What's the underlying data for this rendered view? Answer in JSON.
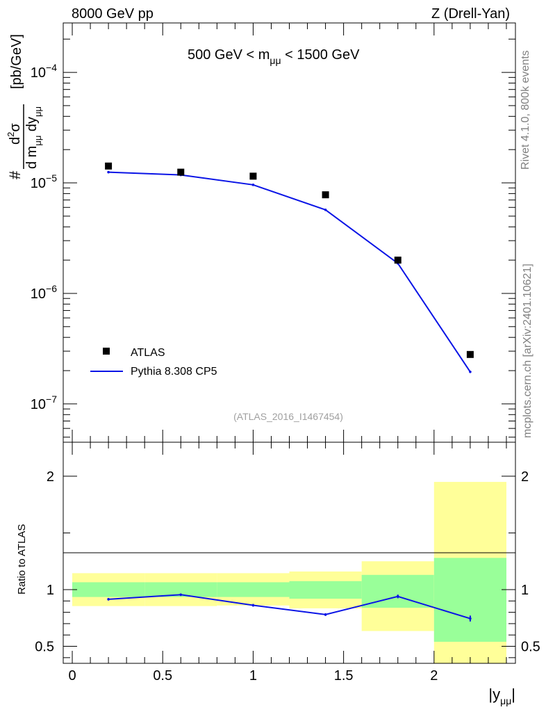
{
  "header": {
    "left": "8000 GeV pp",
    "right": "Z (Drell-Yan)"
  },
  "side": {
    "rivet": "Rivet 4.1.0,  800k events",
    "mcplots": "mcplots.cern.ch [arXiv:2401.10621]"
  },
  "colors": {
    "data": "#000000",
    "mc": "#0a14e6",
    "band_inner": "#99ff99",
    "band_outer": "#ffff99",
    "watermark": "#a0a0a0"
  },
  "chart_data": [
    {
      "type": "scatter",
      "title": "500 GeV < mμμ < 1500 GeV",
      "title_parts": {
        "prefix": "500 GeV < m",
        "sub": "μμ",
        "suffix": " < 1500 GeV"
      },
      "watermark": "(ATLAS_2016_I1467454)",
      "ylabel": "# d²σ / d mμμ dyμμ [pb/GeV]",
      "yscale": "log",
      "ylim": [
        4.5e-08,
        0.00028
      ],
      "xlim": [
        -0.05,
        2.45
      ],
      "ytick_labels": [
        {
          "value": 0.0001,
          "base": "10",
          "exp": "−4"
        },
        {
          "value": 1e-05,
          "base": "10",
          "exp": "−5"
        },
        {
          "value": 1e-06,
          "base": "10",
          "exp": "−6"
        },
        {
          "value": 1e-07,
          "base": "10",
          "exp": "−7"
        }
      ],
      "legend": {
        "position": "bottom-left",
        "entries": [
          "ATLAS",
          "Pythia 8.308 CP5"
        ]
      },
      "series": [
        {
          "name": "ATLAS",
          "kind": "markers",
          "x": [
            0.2,
            0.6,
            1.0,
            1.4,
            1.8,
            2.2
          ],
          "y": [
            1.42e-05,
            1.25e-05,
            1.15e-05,
            7.8e-06,
            2e-06,
            2.8e-07
          ]
        },
        {
          "name": "Pythia 8.308 CP5",
          "kind": "line",
          "x": [
            0.2,
            0.6,
            1.0,
            1.4,
            1.8,
            2.2
          ],
          "y": [
            1.25e-05,
            1.18e-05,
            9.6e-06,
            5.7e-06,
            1.87e-06,
            1.95e-07
          ]
        }
      ]
    },
    {
      "type": "line",
      "ylabel": "Ratio to ATLAS",
      "xlabel": "|yμμ|",
      "xlabel_parts": {
        "prefix": "|y",
        "sub": "μμ",
        "suffix": "|"
      },
      "ylim": [
        0.35,
        2.3
      ],
      "xlim": [
        -0.05,
        2.45
      ],
      "yticks": [
        0.5,
        1,
        2
      ],
      "ytick_labels": [
        "0.5",
        "1",
        "2"
      ],
      "xticks": [
        0,
        0.5,
        1,
        1.5,
        2
      ],
      "xtick_labels": [
        "0",
        "0.5",
        "1",
        "1.5",
        "2"
      ],
      "bins": [
        0,
        0.4,
        0.8,
        1.2,
        1.6,
        2.0,
        2.4
      ],
      "band_inner": {
        "lo": [
          0.935,
          0.935,
          0.935,
          0.92,
          0.84,
          0.54
        ],
        "hi": [
          1.065,
          1.065,
          1.065,
          1.075,
          1.13,
          1.28
        ]
      },
      "band_outer": {
        "lo": [
          0.855,
          0.855,
          0.86,
          0.835,
          0.635,
          0.35
        ],
        "hi": [
          1.145,
          1.145,
          1.145,
          1.16,
          1.25,
          1.95
        ]
      },
      "series": [
        {
          "name": "Pythia 8.308 CP5 / ATLAS",
          "x": [
            0.2,
            0.6,
            1.0,
            1.4,
            1.8,
            2.2
          ],
          "y": [
            0.915,
            0.955,
            0.862,
            0.78,
            0.94,
            0.745
          ],
          "err": [
            0.005,
            0.005,
            0.006,
            0.006,
            0.01,
            0.02
          ]
        }
      ]
    }
  ]
}
